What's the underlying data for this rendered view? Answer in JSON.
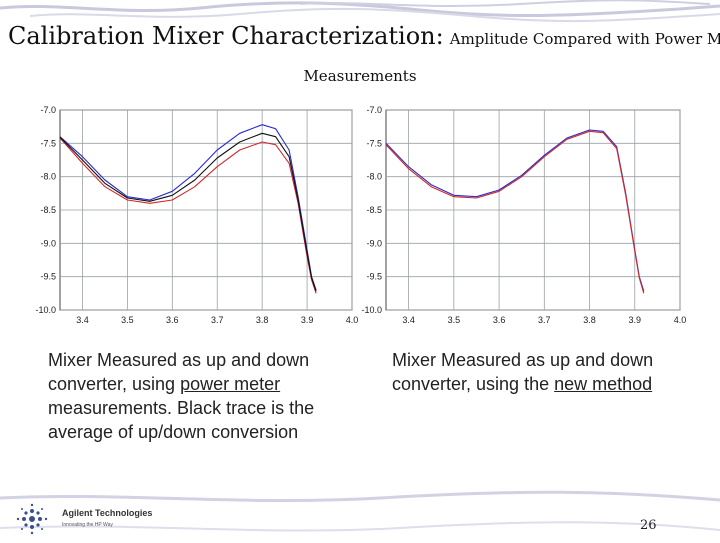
{
  "slide": {
    "title_main": "Calibration Mixer Characterization:",
    "title_sub": "Amplitude Compared with Power Meter",
    "title_line2": "Measurements",
    "page_number": "26",
    "logo_name": "Agilent Technologies",
    "logo_tagline": "Innovating the HP Way"
  },
  "captions": {
    "left": {
      "pre": "Mixer Measured as up and down converter, using ",
      "link": "power meter",
      "post": " measurements.  Black trace is the average of up/down conversion"
    },
    "right": {
      "pre": "Mixer Measured as up and down converter, using the ",
      "link": "new method",
      "post": ""
    }
  },
  "colors": {
    "blue_trace": "#2a2ad0",
    "red_trace": "#d02a2a",
    "black_trace": "#111111",
    "grid": "#9aa0a6"
  },
  "chart_data": [
    {
      "type": "line",
      "title": "",
      "xlabel": "",
      "ylabel": "",
      "xlim": [
        3.35,
        4.0
      ],
      "ylim": [
        -10.0,
        -7.0
      ],
      "x_ticks": [
        "3.4",
        "3.5",
        "3.6",
        "3.7",
        "3.8",
        "3.9",
        "4.0"
      ],
      "y_ticks": [
        "-7.0",
        "-7.5",
        "-8.0",
        "-8.5",
        "-9.0",
        "-9.5",
        "-10.0"
      ],
      "series": [
        {
          "name": "up",
          "color": "blue",
          "x": [
            3.35,
            3.4,
            3.45,
            3.5,
            3.55,
            3.6,
            3.65,
            3.7,
            3.75,
            3.8,
            3.83,
            3.86,
            3.88,
            3.9,
            3.91,
            3.92
          ],
          "y": [
            -7.4,
            -7.7,
            -8.05,
            -8.3,
            -8.35,
            -8.22,
            -7.95,
            -7.6,
            -7.35,
            -7.22,
            -7.28,
            -7.6,
            -8.3,
            -9.1,
            -9.5,
            -9.7
          ]
        },
        {
          "name": "down",
          "color": "red",
          "x": [
            3.35,
            3.4,
            3.45,
            3.5,
            3.55,
            3.6,
            3.65,
            3.7,
            3.75,
            3.8,
            3.83,
            3.86,
            3.88,
            3.9,
            3.91,
            3.92
          ],
          "y": [
            -7.42,
            -7.8,
            -8.15,
            -8.35,
            -8.4,
            -8.35,
            -8.15,
            -7.85,
            -7.6,
            -7.48,
            -7.52,
            -7.8,
            -8.4,
            -9.2,
            -9.55,
            -9.75
          ]
        },
        {
          "name": "average",
          "color": "black",
          "x": [
            3.35,
            3.4,
            3.45,
            3.5,
            3.55,
            3.6,
            3.65,
            3.7,
            3.75,
            3.8,
            3.83,
            3.86,
            3.88,
            3.9,
            3.91,
            3.92
          ],
          "y": [
            -7.41,
            -7.75,
            -8.1,
            -8.32,
            -8.37,
            -8.28,
            -8.05,
            -7.72,
            -7.48,
            -7.35,
            -7.4,
            -7.7,
            -8.35,
            -9.15,
            -9.52,
            -9.72
          ]
        }
      ]
    },
    {
      "type": "line",
      "title": "",
      "xlabel": "",
      "ylabel": "",
      "xlim": [
        3.35,
        4.0
      ],
      "ylim": [
        -10.0,
        -7.0
      ],
      "x_ticks": [
        "3.4",
        "3.5",
        "3.6",
        "3.7",
        "3.8",
        "3.9",
        "4.0"
      ],
      "y_ticks": [
        "-7.0",
        "-7.5",
        "-8.0",
        "-8.5",
        "-9.0",
        "-9.5",
        "-10.0"
      ],
      "series": [
        {
          "name": "up",
          "color": "blue",
          "x": [
            3.35,
            3.4,
            3.45,
            3.5,
            3.55,
            3.6,
            3.65,
            3.7,
            3.75,
            3.8,
            3.83,
            3.86,
            3.88,
            3.9,
            3.91,
            3.92
          ],
          "y": [
            -7.5,
            -7.85,
            -8.12,
            -8.28,
            -8.3,
            -8.2,
            -7.98,
            -7.68,
            -7.42,
            -7.3,
            -7.32,
            -7.55,
            -8.25,
            -9.1,
            -9.5,
            -9.72
          ]
        },
        {
          "name": "down",
          "color": "red",
          "x": [
            3.35,
            3.4,
            3.45,
            3.5,
            3.55,
            3.6,
            3.65,
            3.7,
            3.75,
            3.8,
            3.83,
            3.86,
            3.88,
            3.9,
            3.91,
            3.92
          ],
          "y": [
            -7.52,
            -7.88,
            -8.15,
            -8.3,
            -8.32,
            -8.22,
            -8.0,
            -7.7,
            -7.44,
            -7.32,
            -7.34,
            -7.58,
            -8.28,
            -9.12,
            -9.52,
            -9.75
          ]
        }
      ]
    }
  ]
}
